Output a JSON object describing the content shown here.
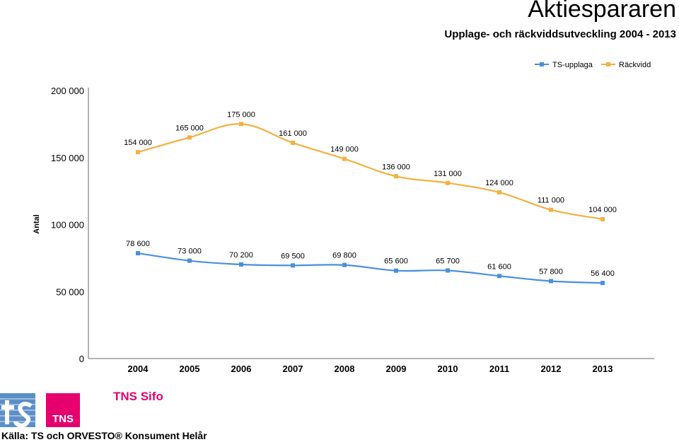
{
  "header": {
    "title": "Aktiespararen",
    "subtitle": "Upplage- och räckviddsutveckling 2004 - 2013"
  },
  "footer": {
    "tns_logo_text": "TNS",
    "sifo_logo_text": "TNS Sifo",
    "source": "Källa: TS och ORVESTO® Konsument Helår"
  },
  "chart_data": {
    "type": "line",
    "ylabel": "Antal",
    "ylim": [
      0,
      200000
    ],
    "y_ticks": [
      0,
      50000,
      100000,
      150000,
      200000
    ],
    "y_tick_labels": [
      "0",
      "50 000",
      "100 000",
      "150 000",
      "200 000"
    ],
    "categories": [
      "2004",
      "2005",
      "2006",
      "2007",
      "2008",
      "2009",
      "2010",
      "2011",
      "2012",
      "2013"
    ],
    "legend_position": "top-right",
    "grid": false,
    "series": [
      {
        "name": "TS-upplaga",
        "color": "#4a8fdf",
        "values": [
          78600,
          73000,
          70200,
          69500,
          69800,
          65600,
          65700,
          61600,
          57800,
          56400
        ],
        "labels": [
          "78 600",
          "73 000",
          "70 200",
          "69 500",
          "69 800",
          "65 600",
          "65 700",
          "61 600",
          "57 800",
          "56 400"
        ]
      },
      {
        "name": "Räckvidd",
        "color": "#f5b041",
        "values": [
          154000,
          165000,
          175000,
          161000,
          149000,
          136000,
          131000,
          124000,
          111000,
          104000
        ],
        "labels": [
          "154 000",
          "165 000",
          "175 000",
          "161 000",
          "149 000",
          "136 000",
          "131 000",
          "124 000",
          "111 000",
          "104 000"
        ]
      }
    ]
  }
}
